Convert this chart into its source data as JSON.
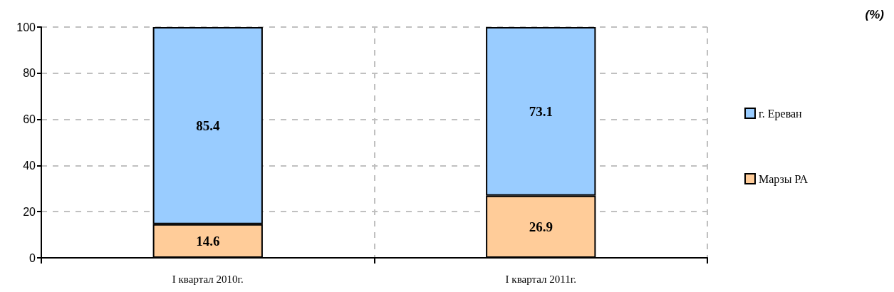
{
  "chart_data": {
    "type": "bar",
    "stacked": true,
    "categories": [
      "I квартал 2010г.",
      "I квартал 2011г."
    ],
    "series": [
      {
        "name": "Марзы РА",
        "color": "#ffcc99",
        "values": [
          14.6,
          26.9
        ]
      },
      {
        "name": "г. Ереван",
        "color": "#99ccff",
        "values": [
          85.4,
          73.1
        ]
      }
    ],
    "ylim": [
      0,
      100
    ],
    "yticks": [
      0,
      20,
      40,
      60,
      80,
      100
    ],
    "grid": true,
    "legend": "right",
    "data_labels": true,
    "annotations": [
      "(%)"
    ]
  }
}
